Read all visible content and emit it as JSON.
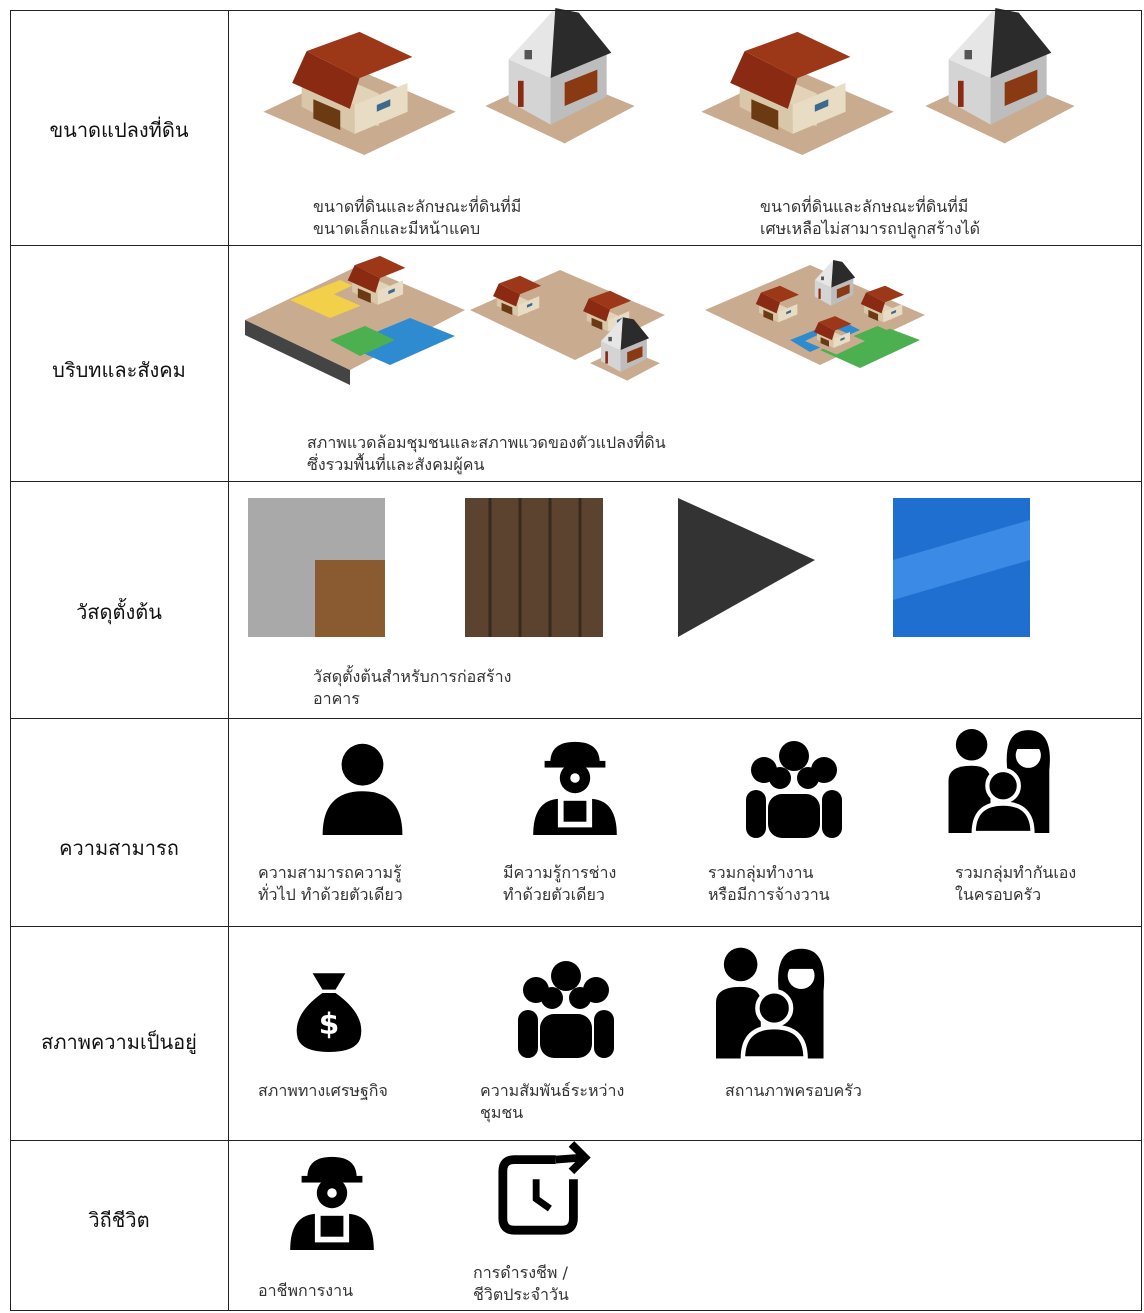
{
  "table": {
    "rows": [
      {
        "label": "ขนาดแปลงที่ดิน",
        "captions": [
          [
            "ขนาดที่ดินและลักษณะที่ดินที่มี",
            "ขนาดเล็กและมีหน้าแคบ"
          ],
          [
            "ขนาดที่ดินและลักษณะที่ดินที่มี",
            "เศษเหลือไม่สามารถปลูกสร้างได้"
          ]
        ]
      },
      {
        "label": "บริบทและสังคม",
        "captions": [
          [
            "สภาพแวดล้อมชุมชนและสภาพแวดของตัวแปลงที่ดิน",
            "ซึ่งรวมพื้นที่และสังคมผู้คน"
          ]
        ]
      },
      {
        "label": "วัสดุตั้งต้น",
        "captions": [
          [
            "วัสดุตั้งต้นสำหรับการก่อสร้าง",
            "อาคาร"
          ]
        ]
      },
      {
        "label": "ความสามารถ",
        "captions": [
          [
            "ความสามารถความรู้",
            "ทั่วไป ทำด้วยตัวเดียว"
          ],
          [
            "มีความรู้การช่าง",
            "ทำด้วยตัวเดียว"
          ],
          [
            "รวมกลุ่มทำงาน",
            "หรือมีการจ้างวาน"
          ],
          [
            "รวมกลุ่มทำกันเอง",
            "ในครอบครัว"
          ]
        ]
      },
      {
        "label": "สภาพความเป็นอยู่",
        "captions": [
          [
            "สภาพทางเศรษฐกิจ"
          ],
          [
            "ความสัมพันธ์ระหว่าง",
            "ชุมชน"
          ],
          [
            "สถานภาพครอบครัว"
          ]
        ]
      },
      {
        "label": "วิถีชีวิต",
        "captions": [
          [
            "อาชีพการงาน"
          ],
          [
            "การดำรงชีพ /",
            "ชีวิตประจำวัน"
          ]
        ]
      }
    ]
  }
}
